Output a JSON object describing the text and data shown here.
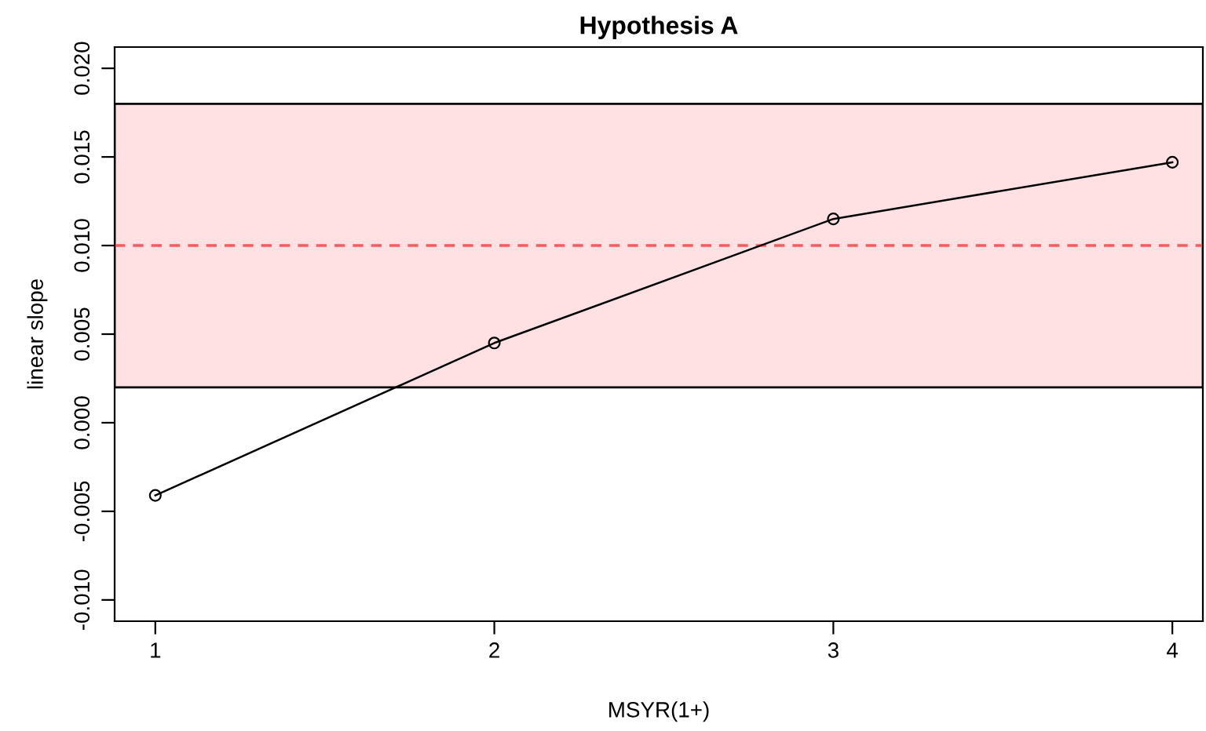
{
  "chart_data": {
    "type": "line",
    "title": "Hypothesis A",
    "xlabel": "MSYR(1+)",
    "ylabel": "linear slope",
    "x": [
      1,
      2,
      3,
      4
    ],
    "series": [
      {
        "color": "#000000",
        "values": [
          -0.0041,
          0.0045,
          0.0115,
          0.0147
        ]
      }
    ],
    "marker": "circle",
    "line_style": "solid",
    "grid": false,
    "xlim": [
      0.88,
      4.09
    ],
    "xticks": [
      1,
      2,
      3,
      4
    ],
    "ylim": [
      -0.0112,
      0.0212
    ],
    "yticks": [
      {
        "value": -0.01,
        "label": "-0.010"
      },
      {
        "value": -0.005,
        "label": "-0.005"
      },
      {
        "value": 0,
        "label": "0.000"
      },
      {
        "value": 0.005,
        "label": "0.005"
      },
      {
        "value": 0.01,
        "label": "0.010"
      },
      {
        "value": 0.015,
        "label": "0.015"
      },
      {
        "value": 0.02,
        "label": "0.020"
      }
    ],
    "bands": [
      {
        "axis": "y",
        "from": 0.002,
        "to": 0.018,
        "color": "#ffe1e3"
      }
    ],
    "ref_lines": [
      {
        "axis": "y",
        "value": 0.01,
        "color": "#ff5a5a",
        "line_style": "dashed"
      }
    ]
  }
}
